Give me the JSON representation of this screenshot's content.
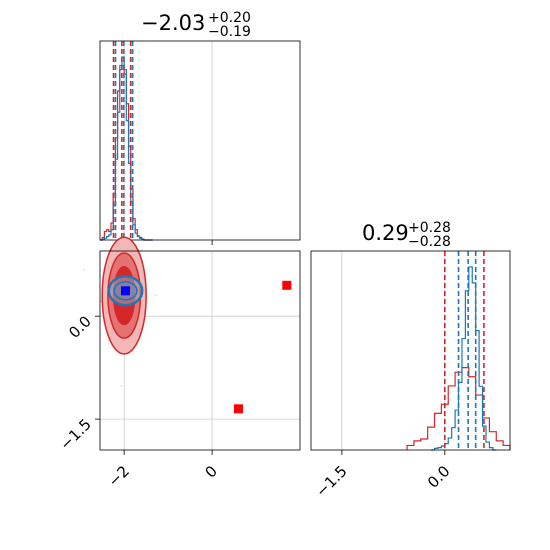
{
  "chart_data": {
    "type": "corner",
    "parameters": [
      {
        "title": {
          "value": "−2.03",
          "plus": "+0.20",
          "minus": "−0.19"
        },
        "range": [
          -2.55,
          2.0
        ],
        "ticks": [
          {
            "v": -2,
            "label": "−2"
          },
          {
            "v": 0,
            "label": "0"
          }
        ],
        "quantile_lines": [
          -2.22,
          -2.03,
          -1.83
        ],
        "series": [
          {
            "name": "",
            "color": "#1f77b4",
            "bin_edges": [
              -2.55,
              -2.5,
              -2.45,
              -2.4,
              -2.35,
              -2.3,
              -2.25,
              -2.2,
              -2.15,
              -2.1,
              -2.05,
              -2.0,
              -1.95,
              -1.9,
              -1.85,
              -1.8,
              -1.75,
              -1.7,
              -1.65,
              -1.6,
              -1.55,
              -1.5,
              -1.45,
              -1.4,
              -1.35
            ],
            "counts": [
              0,
              1,
              2,
              4,
              6,
              12,
              40,
              95,
              150,
              205,
              215,
              200,
              140,
              90,
              45,
              18,
              8,
              4,
              2,
              1,
              0,
              0,
              0,
              0
            ]
          },
          {
            "name": "",
            "color": "#d62728",
            "bin_edges": [
              -2.55,
              -2.5,
              -2.45,
              -2.4,
              -2.35,
              -2.3,
              -2.25,
              -2.2,
              -2.15,
              -2.1,
              -2.05,
              -2.0,
              -1.95,
              -1.9,
              -1.85,
              -1.8,
              -1.75,
              -1.7,
              -1.65,
              -1.6,
              -1.55,
              -1.5,
              -1.45,
              -1.4,
              -1.35
            ],
            "counts": [
              0,
              3,
              10,
              12,
              10,
              20,
              55,
              120,
              175,
              200,
              205,
              195,
              160,
              110,
              60,
              25,
              12,
              5,
              3,
              1,
              0,
              0,
              0,
              0
            ]
          }
        ]
      },
      {
        "title": {
          "value": "0.29",
          "plus": "+0.28",
          "minus": "−0.28"
        },
        "range": [
          -1.95,
          0.95
        ],
        "ticks": [
          {
            "v": -1.5,
            "label": "−1.5"
          },
          {
            "v": 0,
            "label": "0.0"
          }
        ],
        "quantile_lines_red": [
          0.0,
          0.57
        ],
        "quantile_lines_blue": [
          0.2,
          0.34,
          0.45
        ],
        "series": [
          {
            "name": "",
            "color": "#1f77b4",
            "bin_edges": [
              -0.2,
              -0.15,
              -0.1,
              -0.05,
              0.0,
              0.05,
              0.1,
              0.15,
              0.2,
              0.25,
              0.3,
              0.35,
              0.4,
              0.45,
              0.5,
              0.55,
              0.6,
              0.65,
              0.7,
              0.75
            ],
            "counts": [
              0,
              2,
              3,
              5,
              8,
              15,
              28,
              50,
              85,
              140,
              200,
              230,
              210,
              150,
              80,
              30,
              10,
              3,
              0
            ]
          },
          {
            "name": "",
            "color": "#d62728",
            "bin_edges": [
              -0.55,
              -0.45,
              -0.35,
              -0.25,
              -0.15,
              -0.05,
              0.05,
              0.15,
              0.25,
              0.35,
              0.45,
              0.55,
              0.65,
              0.75,
              0.85,
              0.95
            ],
            "counts": [
              5,
              10,
              12,
              25,
              40,
              50,
              70,
              85,
              90,
              80,
              60,
              35,
              20,
              10,
              5
            ]
          }
        ]
      }
    ],
    "scatter_2d": {
      "x_range": [
        -2.55,
        2.0
      ],
      "y_range": [
        -1.95,
        0.95
      ],
      "y_ticks": [
        {
          "v": 0,
          "label": "0.0"
        },
        {
          "v": -1.5,
          "label": "−1.5"
        }
      ],
      "markers": [
        {
          "x": 1.7,
          "y": 0.45,
          "color": "#ff0000",
          "shape": "square"
        },
        {
          "x": 0.6,
          "y": -1.35,
          "color": "#ff0000",
          "shape": "square"
        },
        {
          "x": -1.97,
          "y": 0.37,
          "color": "#0000ff",
          "shape": "square"
        }
      ],
      "red_center": {
        "x": -2.0,
        "y": 0.3
      },
      "blue_center": {
        "x": -1.97,
        "y": 0.37
      }
    }
  }
}
